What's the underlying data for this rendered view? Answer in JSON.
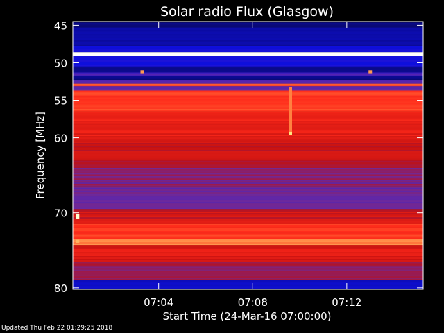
{
  "chart_data": {
    "type": "heatmap",
    "title": "Solar radio Flux (Glasgow)",
    "xlabel": "Start Time (24-Mar-16 07:00:00)",
    "ylabel": "Frequency [MHz]",
    "x_unit": "minutes after 07:00",
    "xlim": [
      0.35,
      15.25
    ],
    "ylim": [
      44.5,
      80.2
    ],
    "x_ticks": [
      {
        "value": 4,
        "label": "07:04"
      },
      {
        "value": 8,
        "label": "07:08"
      },
      {
        "value": 12,
        "label": "07:12"
      }
    ],
    "y_ticks": [
      {
        "value": 45,
        "label": "45"
      },
      {
        "value": 50,
        "label": "50"
      },
      {
        "value": 55,
        "label": "55"
      },
      {
        "value": 60,
        "label": "60"
      },
      {
        "value": 70,
        "label": "70"
      },
      {
        "value": 80,
        "label": "80"
      }
    ],
    "colormap": [
      "#000000",
      "#0a0a80",
      "#1010e0",
      "#6a2aa0",
      "#c01010",
      "#ff2a1a",
      "#ff8040",
      "#ffff90",
      "#ffffff"
    ],
    "bands": [
      {
        "f0": 44.5,
        "f1": 45.3,
        "level": 1.0
      },
      {
        "f0": 45.3,
        "f1": 47.8,
        "level": 1.4
      },
      {
        "f0": 47.8,
        "f1": 48.6,
        "level": 1.9
      },
      {
        "f0": 48.6,
        "f1": 49.1,
        "level": 8.0
      },
      {
        "f0": 49.1,
        "f1": 50.5,
        "level": 2.0
      },
      {
        "f0": 50.5,
        "f1": 51.3,
        "level": 1.2
      },
      {
        "f0": 51.3,
        "f1": 51.8,
        "level": 2.6
      },
      {
        "f0": 51.8,
        "f1": 52.3,
        "level": 1.1
      },
      {
        "f0": 52.3,
        "f1": 52.8,
        "level": 2.8
      },
      {
        "f0": 52.8,
        "f1": 53.1,
        "level": 5.6
      },
      {
        "f0": 53.1,
        "f1": 53.7,
        "level": 3.0
      },
      {
        "f0": 53.7,
        "f1": 56.5,
        "level": 5.2
      },
      {
        "f0": 56.5,
        "f1": 60.5,
        "level": 4.6
      },
      {
        "f0": 60.5,
        "f1": 64.0,
        "level": 4.1
      },
      {
        "f0": 64.0,
        "f1": 66.5,
        "level": 3.3
      },
      {
        "f0": 66.5,
        "f1": 69.5,
        "level": 3.0
      },
      {
        "f0": 69.5,
        "f1": 71.5,
        "level": 4.2
      },
      {
        "f0": 71.5,
        "f1": 73.5,
        "level": 5.1
      },
      {
        "f0": 73.5,
        "f1": 74.3,
        "level": 6.0
      },
      {
        "f0": 74.3,
        "f1": 76.5,
        "level": 4.4
      },
      {
        "f0": 76.5,
        "f1": 79.0,
        "level": 3.5
      },
      {
        "f0": 79.0,
        "f1": 80.2,
        "level": 1.8
      }
    ],
    "spikes": [
      {
        "t": 9.6,
        "f0": 53.2,
        "f1": 59.5,
        "level": 6.0
      },
      {
        "t": 9.6,
        "f0": 59.2,
        "f1": 59.6,
        "level": 6.8
      },
      {
        "t": 3.3,
        "f0": 51.0,
        "f1": 51.4,
        "level": 6.2
      },
      {
        "t": 13.0,
        "f0": 51.0,
        "f1": 51.4,
        "level": 6.2
      },
      {
        "t": 0.55,
        "f0": 70.2,
        "f1": 70.8,
        "level": 7.6
      },
      {
        "t": 0.55,
        "f0": 73.6,
        "f1": 74.0,
        "level": 6.4
      }
    ]
  },
  "footer": {
    "updated": "Updated Thu Feb 22 01:29:25 2018"
  }
}
